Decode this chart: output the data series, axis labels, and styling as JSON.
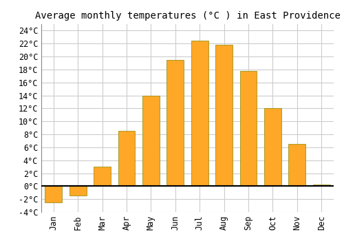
{
  "title": "Average monthly temperatures (°C ) in East Providence",
  "months": [
    "Jan",
    "Feb",
    "Mar",
    "Apr",
    "May",
    "Jun",
    "Jul",
    "Aug",
    "Sep",
    "Oct",
    "Nov",
    "Dec"
  ],
  "values": [
    -2.5,
    -1.5,
    3.0,
    8.5,
    14.0,
    19.5,
    22.5,
    21.8,
    17.8,
    12.0,
    6.5,
    0.3
  ],
  "bar_color": "#FFA726",
  "bar_edge_color": "#888800",
  "ylim": [
    -4,
    25
  ],
  "yticks": [
    -4,
    -2,
    0,
    2,
    4,
    6,
    8,
    10,
    12,
    14,
    16,
    18,
    20,
    22,
    24
  ],
  "background_color": "#ffffff",
  "grid_color": "#cccccc",
  "title_fontsize": 10,
  "tick_fontsize": 8.5,
  "font_family": "monospace"
}
